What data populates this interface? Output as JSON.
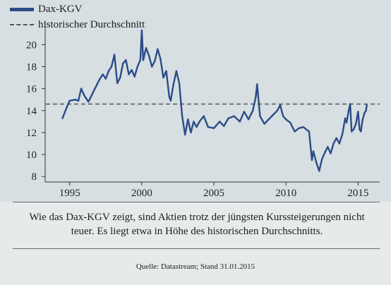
{
  "chart_data": {
    "type": "line",
    "legend": {
      "placement": "top-left",
      "entries": [
        {
          "label": "Dax-KGV",
          "style": "solid",
          "color": "#2b4c86"
        },
        {
          "label": "historischer Durchschnitt",
          "style": "dashed",
          "color": "#555555"
        }
      ]
    },
    "xlim": [
      1993.3,
      2016.5
    ],
    "ylim": [
      7.5,
      21.5
    ],
    "xticks": [
      1995,
      2000,
      2005,
      2010,
      2015
    ],
    "yticks": [
      8,
      10,
      12,
      14,
      16,
      18,
      20
    ],
    "grid": false,
    "series": [
      {
        "name": "Dax-KGV",
        "color": "#2b4c86",
        "points": [
          [
            1994.5,
            13.3
          ],
          [
            1994.8,
            14.3
          ],
          [
            1995.0,
            14.9
          ],
          [
            1995.4,
            15.0
          ],
          [
            1995.6,
            14.9
          ],
          [
            1995.8,
            16.0
          ],
          [
            1996.0,
            15.4
          ],
          [
            1996.3,
            14.8
          ],
          [
            1996.6,
            15.6
          ],
          [
            1996.9,
            16.4
          ],
          [
            1997.1,
            16.9
          ],
          [
            1997.3,
            17.3
          ],
          [
            1997.5,
            16.9
          ],
          [
            1997.7,
            17.6
          ],
          [
            1997.9,
            18.0
          ],
          [
            1998.1,
            19.1
          ],
          [
            1998.3,
            16.5
          ],
          [
            1998.5,
            17.0
          ],
          [
            1998.7,
            18.3
          ],
          [
            1998.9,
            18.6
          ],
          [
            1999.1,
            17.3
          ],
          [
            1999.3,
            17.7
          ],
          [
            1999.5,
            17.1
          ],
          [
            1999.7,
            18.0
          ],
          [
            1999.9,
            18.6
          ],
          [
            2000.0,
            21.3
          ],
          [
            2000.1,
            18.6
          ],
          [
            2000.3,
            19.7
          ],
          [
            2000.5,
            19.0
          ],
          [
            2000.7,
            18.0
          ],
          [
            2000.9,
            18.5
          ],
          [
            2001.1,
            19.6
          ],
          [
            2001.3,
            18.7
          ],
          [
            2001.5,
            17.0
          ],
          [
            2001.7,
            17.6
          ],
          [
            2001.9,
            15.3
          ],
          [
            2002.0,
            14.9
          ],
          [
            2002.2,
            16.4
          ],
          [
            2002.4,
            17.6
          ],
          [
            2002.6,
            16.5
          ],
          [
            2002.8,
            13.5
          ],
          [
            2003.0,
            11.8
          ],
          [
            2003.2,
            13.2
          ],
          [
            2003.4,
            12.0
          ],
          [
            2003.6,
            13.0
          ],
          [
            2003.8,
            12.5
          ],
          [
            2004.0,
            13.0
          ],
          [
            2004.3,
            13.5
          ],
          [
            2004.6,
            12.5
          ],
          [
            2005.0,
            12.4
          ],
          [
            2005.4,
            13.0
          ],
          [
            2005.7,
            12.6
          ],
          [
            2006.0,
            13.3
          ],
          [
            2006.4,
            13.5
          ],
          [
            2006.8,
            13.0
          ],
          [
            2007.1,
            13.9
          ],
          [
            2007.4,
            13.2
          ],
          [
            2007.7,
            14.0
          ],
          [
            2007.9,
            15.2
          ],
          [
            2008.0,
            16.4
          ],
          [
            2008.2,
            13.5
          ],
          [
            2008.5,
            12.8
          ],
          [
            2008.8,
            13.2
          ],
          [
            2009.1,
            13.6
          ],
          [
            2009.4,
            14.0
          ],
          [
            2009.6,
            14.5
          ],
          [
            2009.8,
            13.5
          ],
          [
            2010.0,
            13.2
          ],
          [
            2010.3,
            12.9
          ],
          [
            2010.6,
            12.1
          ],
          [
            2010.9,
            12.4
          ],
          [
            2011.2,
            12.5
          ],
          [
            2011.6,
            12.1
          ],
          [
            2011.8,
            9.5
          ],
          [
            2011.9,
            10.3
          ],
          [
            2012.1,
            9.3
          ],
          [
            2012.3,
            8.5
          ],
          [
            2012.5,
            9.6
          ],
          [
            2012.7,
            10.2
          ],
          [
            2012.9,
            10.7
          ],
          [
            2013.1,
            10.1
          ],
          [
            2013.3,
            11.0
          ],
          [
            2013.5,
            11.5
          ],
          [
            2013.7,
            11.0
          ],
          [
            2013.9,
            11.8
          ],
          [
            2014.0,
            12.5
          ],
          [
            2014.1,
            13.3
          ],
          [
            2014.2,
            12.9
          ],
          [
            2014.35,
            14.0
          ],
          [
            2014.45,
            14.6
          ],
          [
            2014.55,
            12.1
          ],
          [
            2014.7,
            12.3
          ],
          [
            2014.85,
            12.8
          ],
          [
            2015.0,
            13.9
          ],
          [
            2015.1,
            12.3
          ],
          [
            2015.2,
            12.1
          ],
          [
            2015.3,
            13.1
          ],
          [
            2015.45,
            13.8
          ],
          [
            2015.55,
            14.0
          ],
          [
            2015.6,
            14.5
          ]
        ]
      },
      {
        "name": "historischer Durchschnitt",
        "style": "dashed",
        "color": "#555555",
        "value": 14.6
      }
    ]
  },
  "caption": "Wie das Dax-KGV zeigt, sind Aktien trotz der jüngsten Kurssteigerungen nicht teuer. Es liegt etwa in Höhe des historischen Durchschnitts.",
  "source": "Quelle: Datastream; Stand 31.01.2015"
}
